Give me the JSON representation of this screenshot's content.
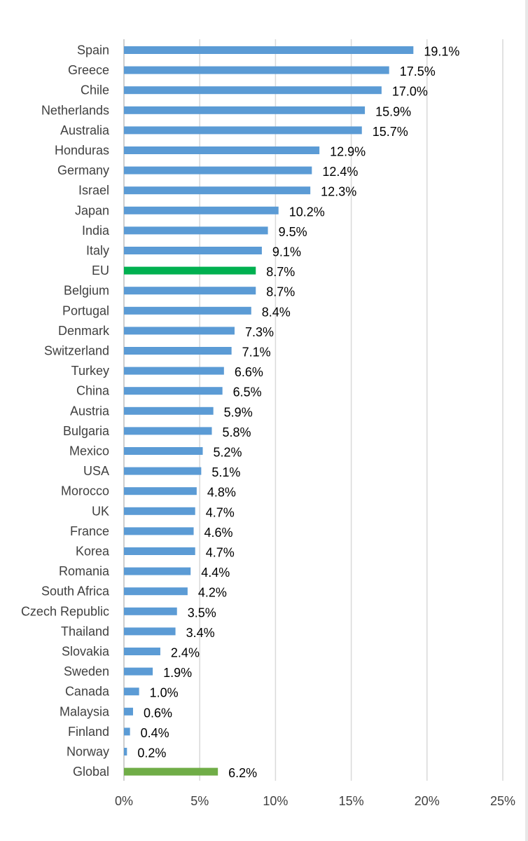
{
  "chart_data": {
    "type": "bar",
    "orientation": "horizontal",
    "title": "",
    "xlabel": "",
    "ylabel": "",
    "xlim": [
      0,
      25
    ],
    "x_ticks": [
      "0%",
      "5%",
      "10%",
      "15%",
      "20%",
      "25%"
    ],
    "x_tick_values": [
      0,
      5,
      10,
      15,
      20,
      25
    ],
    "grid": true,
    "legend": "none",
    "categories": [
      "Spain",
      "Greece",
      "Chile",
      "Netherlands",
      "Australia",
      "Honduras",
      "Germany",
      "Israel",
      "Japan",
      "India",
      "Italy",
      "EU",
      "Belgium",
      "Portugal",
      "Denmark",
      "Switzerland",
      "Turkey",
      "China",
      "Austria",
      "Bulgaria",
      "Mexico",
      "USA",
      "Morocco",
      "UK",
      "France",
      "Korea",
      "Romania",
      "South Africa",
      "Czech Republic",
      "Thailand",
      "Slovakia",
      "Sweden",
      "Canada",
      "Malaysia",
      "Finland",
      "Norway",
      "Global"
    ],
    "values": [
      19.1,
      17.5,
      17.0,
      15.9,
      15.7,
      12.9,
      12.4,
      12.3,
      10.2,
      9.5,
      9.1,
      8.7,
      8.7,
      8.4,
      7.3,
      7.1,
      6.6,
      6.5,
      5.9,
      5.8,
      5.2,
      5.1,
      4.8,
      4.7,
      4.6,
      4.7,
      4.4,
      4.2,
      3.5,
      3.4,
      2.4,
      1.9,
      1.0,
      0.6,
      0.4,
      0.2,
      6.2
    ],
    "value_labels": [
      "19.1%",
      "17.5%",
      "17.0%",
      "15.9%",
      "15.7%",
      "12.9%",
      "12.4%",
      "12.3%",
      "10.2%",
      "9.5%",
      "9.1%",
      "8.7%",
      "8.7%",
      "8.4%",
      "7.3%",
      "7.1%",
      "6.6%",
      "6.5%",
      "5.9%",
      "5.8%",
      "5.2%",
      "5.1%",
      "4.8%",
      "4.7%",
      "4.6%",
      "4.7%",
      "4.4%",
      "4.2%",
      "3.5%",
      "3.4%",
      "2.4%",
      "1.9%",
      "1.0%",
      "0.6%",
      "0.4%",
      "0.2%",
      "6.2%"
    ],
    "colors": {
      "default": "#5b9bd5",
      "EU": "#00b050",
      "Global": "#70ad47"
    }
  }
}
